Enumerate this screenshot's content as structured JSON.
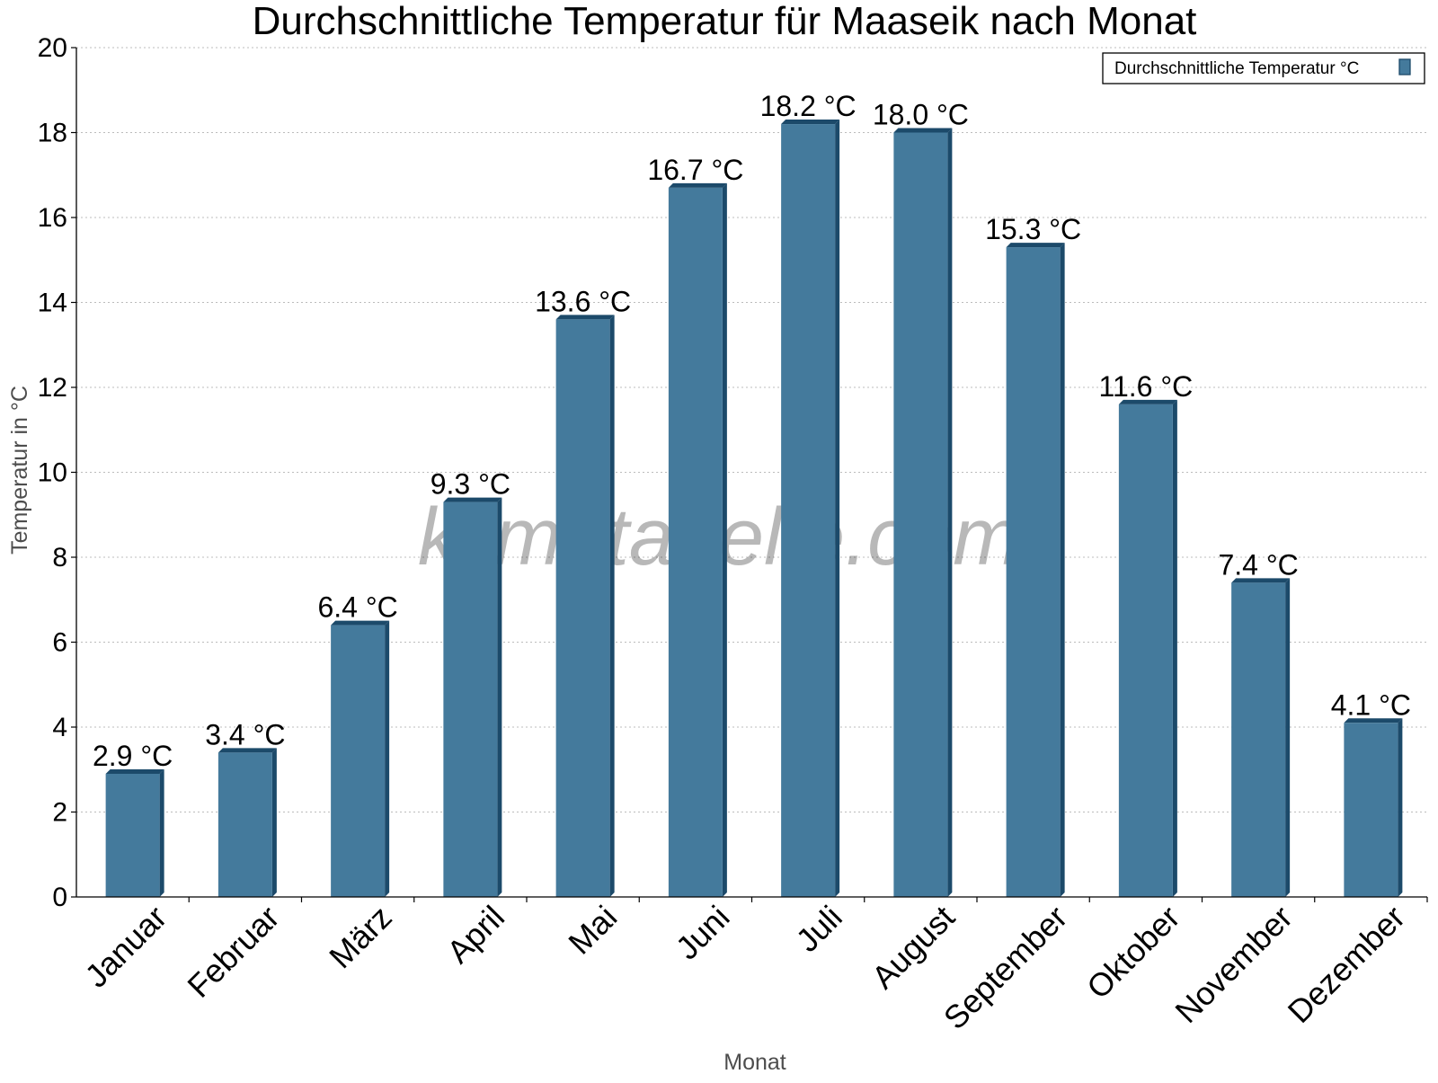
{
  "chart_data": {
    "type": "bar",
    "title": "Durchschnittliche Temperatur für Maaseik nach Monat",
    "xlabel": "Monat",
    "ylabel": "Temperatur in °C",
    "categories": [
      "Januar",
      "Februar",
      "März",
      "April",
      "Mai",
      "Juni",
      "Juli",
      "August",
      "September",
      "Oktober",
      "November",
      "Dezember"
    ],
    "series": [
      {
        "name": "Durchschnittliche Temperatur °C",
        "values": [
          2.9,
          3.4,
          6.4,
          9.3,
          13.6,
          16.7,
          18.2,
          18.0,
          15.3,
          11.6,
          7.4,
          4.1
        ],
        "labels": [
          "2.9 °C",
          "3.4 °C",
          "6.4 °C",
          "9.3 °C",
          "13.6 °C",
          "16.7 °C",
          "18.2 °C",
          "18.0 °C",
          "15.3 °C",
          "11.6 °C",
          "7.4 °C",
          "4.1 °C"
        ],
        "color": "#447a9c",
        "edge_color": "#1c4a6a"
      }
    ],
    "ylim": [
      0,
      20
    ],
    "yticks": [
      0,
      2,
      4,
      6,
      8,
      10,
      12,
      14,
      16,
      18,
      20
    ],
    "grid": true,
    "legend": "top-right",
    "watermark": "klimatabelle.com"
  }
}
